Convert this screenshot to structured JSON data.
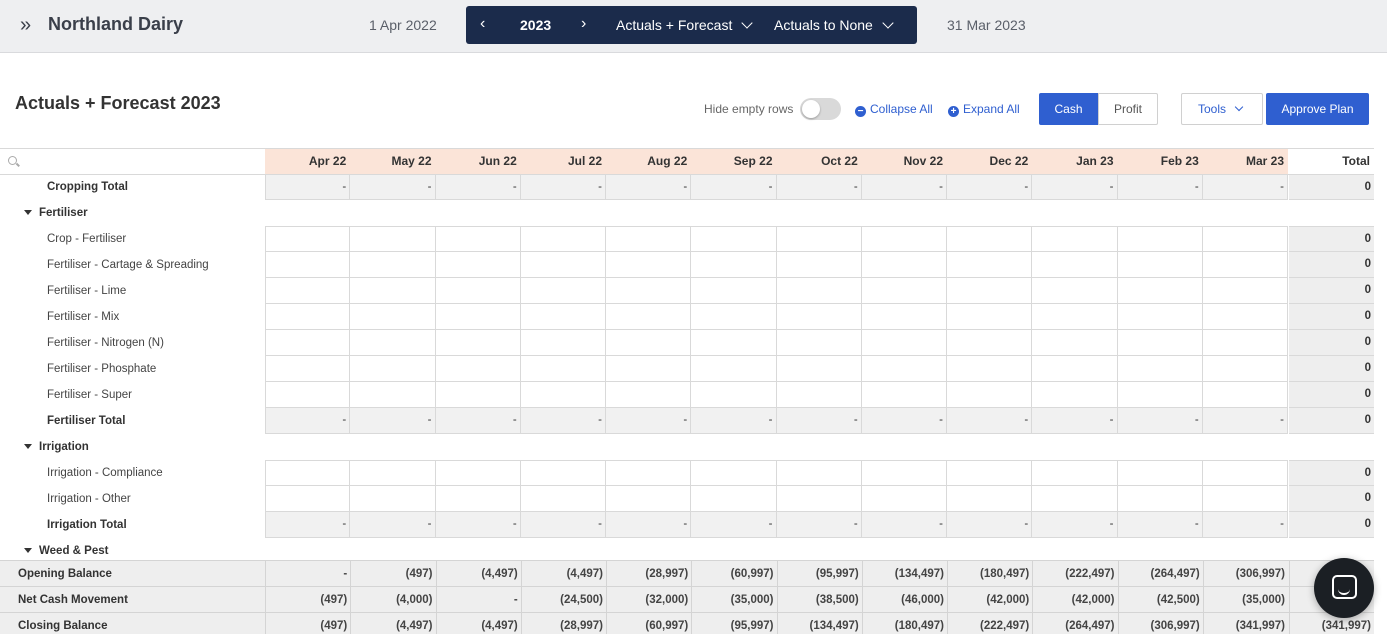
{
  "app": {
    "title": "Northland Dairy"
  },
  "period": {
    "start_date": "1 Apr 2022",
    "end_date": "31 Mar 2023",
    "year": "2023",
    "scenario": "Actuals + Forecast",
    "comparison": "Actuals to None"
  },
  "toolbar": {
    "page_title": "Actuals + Forecast 2023",
    "hide_empty_label": "Hide empty rows",
    "hide_empty_on": false,
    "collapse_all": "Collapse All",
    "expand_all": "Expand All",
    "cash_label": "Cash",
    "profit_label": "Profit",
    "tools_label": "Tools",
    "approve_label": "Approve Plan"
  },
  "grid": {
    "search_placeholder": "",
    "months": [
      "Apr 22",
      "May 22",
      "Jun 22",
      "Jul 22",
      "Aug 22",
      "Sep 22",
      "Oct 22",
      "Nov 22",
      "Dec 22",
      "Jan 23",
      "Feb 23",
      "Mar 23"
    ],
    "total_header": "Total",
    "rows": [
      {
        "kind": "total",
        "label": "Cropping Total",
        "values": [
          "-",
          "-",
          "-",
          "-",
          "-",
          "-",
          "-",
          "-",
          "-",
          "-",
          "-",
          "-"
        ],
        "total": "0"
      },
      {
        "kind": "group",
        "label": "Fertiliser"
      },
      {
        "kind": "item",
        "label": "Crop - Fertiliser",
        "values": [
          "",
          "",
          "",
          "",
          "",
          "",
          "",
          "",
          "",
          "",
          "",
          ""
        ],
        "total": "0"
      },
      {
        "kind": "item",
        "label": "Fertiliser - Cartage & Spreading",
        "values": [
          "",
          "",
          "",
          "",
          "",
          "",
          "",
          "",
          "",
          "",
          "",
          ""
        ],
        "total": "0"
      },
      {
        "kind": "item",
        "label": "Fertiliser - Lime",
        "values": [
          "",
          "",
          "",
          "",
          "",
          "",
          "",
          "",
          "",
          "",
          "",
          ""
        ],
        "total": "0"
      },
      {
        "kind": "item",
        "label": "Fertiliser - Mix",
        "values": [
          "",
          "",
          "",
          "",
          "",
          "",
          "",
          "",
          "",
          "",
          "",
          ""
        ],
        "total": "0"
      },
      {
        "kind": "item",
        "label": "Fertiliser - Nitrogen (N)",
        "values": [
          "",
          "",
          "",
          "",
          "",
          "",
          "",
          "",
          "",
          "",
          "",
          ""
        ],
        "total": "0"
      },
      {
        "kind": "item",
        "label": "Fertiliser - Phosphate",
        "values": [
          "",
          "",
          "",
          "",
          "",
          "",
          "",
          "",
          "",
          "",
          "",
          ""
        ],
        "total": "0"
      },
      {
        "kind": "item",
        "label": "Fertiliser - Super",
        "values": [
          "",
          "",
          "",
          "",
          "",
          "",
          "",
          "",
          "",
          "",
          "",
          ""
        ],
        "total": "0"
      },
      {
        "kind": "total",
        "label": "Fertiliser Total",
        "values": [
          "-",
          "-",
          "-",
          "-",
          "-",
          "-",
          "-",
          "-",
          "-",
          "-",
          "-",
          "-"
        ],
        "total": "0"
      },
      {
        "kind": "group",
        "label": "Irrigation"
      },
      {
        "kind": "item",
        "label": "Irrigation - Compliance",
        "values": [
          "",
          "",
          "",
          "",
          "",
          "",
          "",
          "",
          "",
          "",
          "",
          ""
        ],
        "total": "0"
      },
      {
        "kind": "item",
        "label": "Irrigation - Other",
        "values": [
          "",
          "",
          "",
          "",
          "",
          "",
          "",
          "",
          "",
          "",
          "",
          ""
        ],
        "total": "0"
      },
      {
        "kind": "total",
        "label": "Irrigation Total",
        "values": [
          "-",
          "-",
          "-",
          "-",
          "-",
          "-",
          "-",
          "-",
          "-",
          "-",
          "-",
          "-"
        ],
        "total": "0"
      },
      {
        "kind": "group",
        "label": "Weed & Pest"
      }
    ]
  },
  "footer": [
    {
      "label": "Opening Balance",
      "values": [
        "-",
        "(497)",
        "(4,497)",
        "(4,497)",
        "(28,997)",
        "(60,997)",
        "(95,997)",
        "(134,497)",
        "(180,497)",
        "(222,497)",
        "(264,497)",
        "(306,997)"
      ],
      "total": ""
    },
    {
      "label": "Net Cash Movement",
      "values": [
        "(497)",
        "(4,000)",
        "-",
        "(24,500)",
        "(32,000)",
        "(35,000)",
        "(38,500)",
        "(46,000)",
        "(42,000)",
        "(42,000)",
        "(42,500)",
        "(35,000)"
      ],
      "total": ""
    },
    {
      "label": "Closing Balance",
      "values": [
        "(497)",
        "(4,497)",
        "(4,497)",
        "(28,997)",
        "(60,997)",
        "(95,997)",
        "(134,497)",
        "(180,497)",
        "(222,497)",
        "(264,497)",
        "(306,997)",
        "(341,997)"
      ],
      "total": "(341,997)"
    }
  ]
}
